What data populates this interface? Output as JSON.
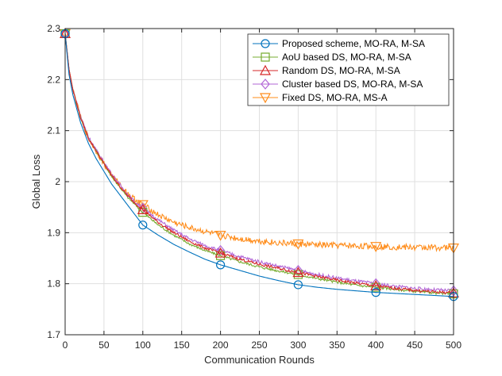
{
  "chart_data": {
    "type": "line",
    "xlabel": "Communication Rounds",
    "ylabel": "Global Loss",
    "xlim": [
      0,
      500
    ],
    "ylim": [
      1.7,
      2.3
    ],
    "xticks": [
      0,
      50,
      100,
      150,
      200,
      250,
      300,
      350,
      400,
      450,
      500
    ],
    "yticks": [
      1.7,
      1.8,
      1.9,
      2.0,
      2.1,
      2.2,
      2.3
    ],
    "xtick_labels": [
      "0",
      "50",
      "100",
      "150",
      "200",
      "250",
      "300",
      "350",
      "400",
      "450",
      "500"
    ],
    "ytick_labels": [
      "1.7",
      "1.8",
      "1.9",
      "2",
      "2.1",
      "2.2",
      "2.3"
    ],
    "grid": true,
    "legend_position": "top-right",
    "series": [
      {
        "name": "Proposed scheme, MO-RA, M-SA",
        "color": "#0072BD",
        "marker": "circle",
        "x": [
          0,
          5,
          10,
          20,
          30,
          40,
          50,
          60,
          70,
          80,
          90,
          100,
          120,
          140,
          160,
          180,
          200,
          225,
          250,
          275,
          300,
          325,
          350,
          375,
          400,
          425,
          450,
          475,
          500
        ],
        "values": [
          2.29,
          2.21,
          2.17,
          2.115,
          2.075,
          2.045,
          2.02,
          1.995,
          1.975,
          1.955,
          1.935,
          1.915,
          1.895,
          1.877,
          1.862,
          1.848,
          1.837,
          1.826,
          1.815,
          1.806,
          1.798,
          1.793,
          1.789,
          1.786,
          1.783,
          1.781,
          1.779,
          1.777,
          1.775
        ],
        "marker_x": [
          0,
          100,
          200,
          300,
          400,
          500
        ],
        "marker_values": [
          2.29,
          1.915,
          1.837,
          1.798,
          1.783,
          1.775
        ]
      },
      {
        "name": "AoU based DS, MO-RA, M-SA",
        "color": "#77AC30",
        "marker": "square",
        "x": [
          0,
          5,
          10,
          20,
          30,
          40,
          50,
          60,
          70,
          80,
          90,
          100,
          120,
          140,
          160,
          180,
          200,
          225,
          250,
          275,
          300,
          325,
          350,
          375,
          400,
          425,
          450,
          475,
          500
        ],
        "values": [
          2.29,
          2.22,
          2.18,
          2.125,
          2.085,
          2.06,
          2.035,
          2.01,
          1.99,
          1.97,
          1.955,
          1.94,
          1.915,
          1.895,
          1.878,
          1.865,
          1.855,
          1.843,
          1.833,
          1.825,
          1.818,
          1.81,
          1.803,
          1.797,
          1.793,
          1.789,
          1.785,
          1.782,
          1.78
        ],
        "marker_x": [
          0,
          100,
          200,
          300,
          400,
          500
        ],
        "marker_values": [
          2.29,
          1.94,
          1.855,
          1.818,
          1.793,
          1.78
        ]
      },
      {
        "name": "Random DS, MO-RA, M-SA",
        "color": "#D62728",
        "marker": "triangle-up",
        "x": [
          0,
          5,
          10,
          20,
          30,
          40,
          50,
          60,
          70,
          80,
          90,
          100,
          120,
          140,
          160,
          180,
          200,
          225,
          250,
          275,
          300,
          325,
          350,
          375,
          400,
          425,
          450,
          475,
          500
        ],
        "values": [
          2.29,
          2.22,
          2.18,
          2.125,
          2.085,
          2.06,
          2.035,
          2.012,
          1.992,
          1.973,
          1.958,
          1.945,
          1.92,
          1.9,
          1.883,
          1.87,
          1.86,
          1.848,
          1.838,
          1.83,
          1.822,
          1.814,
          1.807,
          1.801,
          1.796,
          1.791,
          1.787,
          1.784,
          1.782
        ],
        "marker_x": [
          0,
          100,
          200,
          300,
          400,
          500
        ],
        "marker_values": [
          2.29,
          1.945,
          1.86,
          1.822,
          1.796,
          1.782
        ]
      },
      {
        "name": "Cluster based DS, MO-RA, M-SA",
        "color": "#B266D6",
        "marker": "diamond",
        "x": [
          0,
          5,
          10,
          20,
          30,
          40,
          50,
          60,
          70,
          80,
          90,
          100,
          120,
          140,
          160,
          180,
          200,
          225,
          250,
          275,
          300,
          325,
          350,
          375,
          400,
          425,
          450,
          475,
          500
        ],
        "values": [
          2.29,
          2.22,
          2.18,
          2.128,
          2.088,
          2.062,
          2.038,
          2.015,
          1.995,
          1.976,
          1.96,
          1.948,
          1.925,
          1.905,
          1.888,
          1.875,
          1.865,
          1.853,
          1.843,
          1.834,
          1.826,
          1.818,
          1.811,
          1.805,
          1.8,
          1.795,
          1.791,
          1.788,
          1.786
        ],
        "marker_x": [
          0,
          100,
          200,
          300,
          400,
          500
        ],
        "marker_values": [
          2.29,
          1.948,
          1.865,
          1.826,
          1.8,
          1.786
        ]
      },
      {
        "name": "Fixed DS, MO-RA, MS-A",
        "color": "#FF8C1A",
        "marker": "triangle-down",
        "x": [
          0,
          5,
          10,
          20,
          30,
          40,
          50,
          60,
          70,
          80,
          90,
          100,
          120,
          140,
          160,
          180,
          200,
          225,
          250,
          275,
          300,
          325,
          350,
          375,
          400,
          425,
          450,
          475,
          500
        ],
        "values": [
          2.29,
          2.22,
          2.18,
          2.125,
          2.085,
          2.06,
          2.035,
          2.012,
          1.995,
          1.978,
          1.965,
          1.955,
          1.935,
          1.92,
          1.91,
          1.902,
          1.895,
          1.888,
          1.884,
          1.88,
          1.878,
          1.876,
          1.875,
          1.874,
          1.873,
          1.872,
          1.871,
          1.871,
          1.87
        ],
        "marker_x": [
          0,
          100,
          200,
          300,
          400,
          500
        ],
        "marker_values": [
          2.29,
          1.955,
          1.895,
          1.878,
          1.873,
          1.87
        ]
      }
    ]
  }
}
